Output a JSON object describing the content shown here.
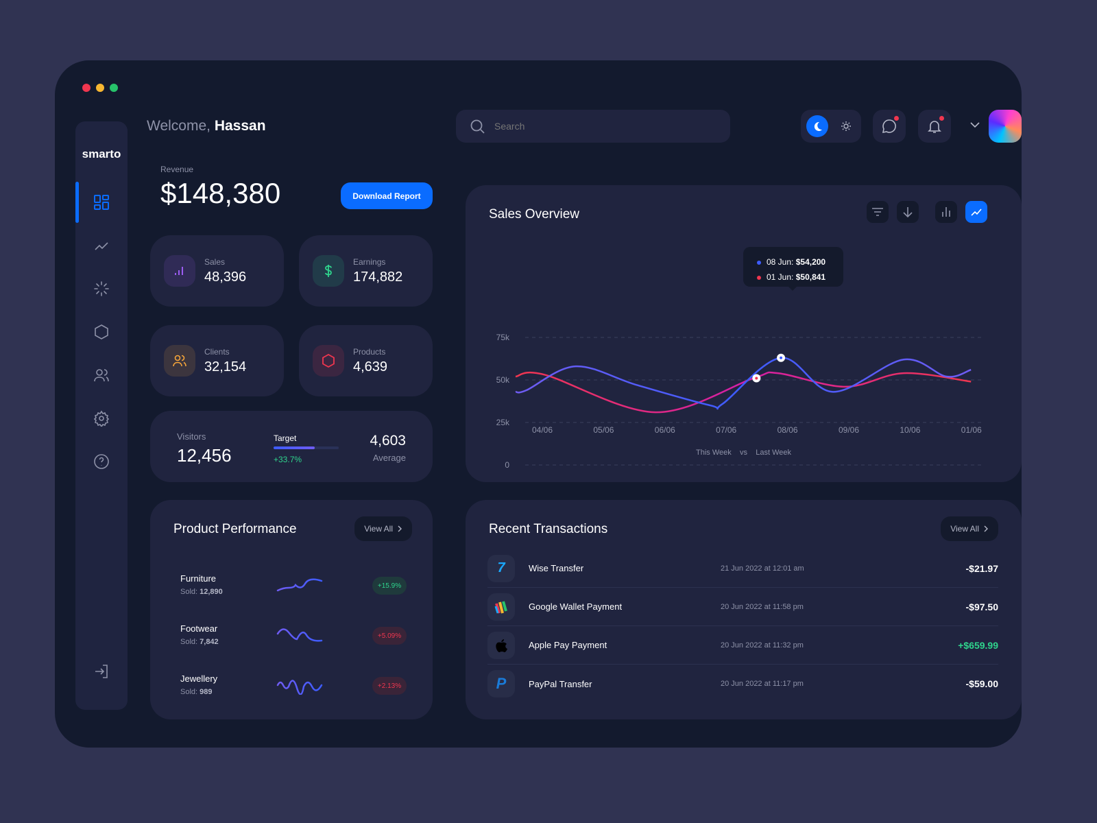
{
  "window_controls": {
    "colors": [
      "#f0364f",
      "#f7b731",
      "#27c26a"
    ]
  },
  "sidebar": {
    "logo": "smarto",
    "items": [
      {
        "name": "dashboard",
        "icon": "grid-icon",
        "active": true
      },
      {
        "name": "analytics",
        "icon": "trend-icon"
      },
      {
        "name": "loading",
        "icon": "spinner-icon"
      },
      {
        "name": "products",
        "icon": "hexagon-icon"
      },
      {
        "name": "users",
        "icon": "users-icon"
      },
      {
        "name": "settings",
        "icon": "gear-icon"
      },
      {
        "name": "help",
        "icon": "help-icon"
      }
    ],
    "logout_icon": "logout-icon"
  },
  "header": {
    "welcome": "Welcome,",
    "user": "Hassan",
    "search_placeholder": "Search",
    "theme": "dark"
  },
  "revenue": {
    "label": "Revenue",
    "value": "$148,380",
    "download_label": "Download Report"
  },
  "stats": [
    {
      "label": "Sales",
      "value": "48,396",
      "icon": "bar-chart-icon",
      "color": "#9b5cf2"
    },
    {
      "label": "Earnings",
      "value": "174,882",
      "icon": "dollar-icon",
      "color": "#2fd58d"
    },
    {
      "label": "Clients",
      "value": "32,154",
      "icon": "users-icon",
      "color": "#f6a53a"
    },
    {
      "label": "Products",
      "value": "4,639",
      "icon": "hexagon-icon",
      "color": "#f0364f"
    }
  ],
  "visitors": {
    "label": "Visitors",
    "value": "12,456",
    "target_label": "Target",
    "target_progress": 0.63,
    "change": "+33.7%",
    "average_value": "4,603",
    "average_label": "Average"
  },
  "sales_overview": {
    "title": "Sales Overview",
    "active_view": "line"
  },
  "chart_data": {
    "type": "line",
    "categories": [
      "04/06",
      "05/06",
      "06/06",
      "07/06",
      "08/06",
      "09/06",
      "10/06",
      "01/06"
    ],
    "yticks": [
      "0",
      "25k",
      "50k",
      "75k"
    ],
    "ylim": [
      0,
      75
    ],
    "grid": true,
    "legend": {
      "a": "This Week",
      "vs": "vs",
      "b": "Last Week"
    },
    "series": [
      {
        "name": "This Week",
        "color": "#3d5cff",
        "points": [
          [
            -0.28,
            43
          ],
          [
            -0.1,
            44
          ],
          [
            0.7,
            58
          ],
          [
            1.7,
            47
          ],
          [
            2.9,
            35
          ],
          [
            3.1,
            36
          ],
          [
            4.05,
            63
          ],
          [
            4.9,
            43
          ],
          [
            6.05,
            62
          ],
          [
            6.75,
            52
          ],
          [
            7.15,
            56
          ]
        ]
      },
      {
        "name": "Last Week",
        "color": "#f0364f",
        "points": [
          [
            -0.28,
            52
          ],
          [
            0.2,
            53
          ],
          [
            2.0,
            31
          ],
          [
            3.6,
            51
          ],
          [
            4.0,
            54
          ],
          [
            5.1,
            46
          ],
          [
            6.05,
            54
          ],
          [
            7.15,
            49
          ]
        ]
      }
    ],
    "tooltip": {
      "line1_label": "08 Jun:",
      "line1_value": "$54,200",
      "line2_label": "01 Jun:",
      "line2_value": "$50,841"
    },
    "markers": [
      [
        4.05,
        63
      ],
      [
        3.65,
        51
      ]
    ]
  },
  "product_performance": {
    "title": "Product Performance",
    "view_all": "View All",
    "items": [
      {
        "name": "Furniture",
        "sold_label": "Sold:",
        "sold": "12,890",
        "change": "+15.9%",
        "trend": "up"
      },
      {
        "name": "Footwear",
        "sold_label": "Sold:",
        "sold": "7,842",
        "change": "+5.09%",
        "trend": "down"
      },
      {
        "name": "Jewellery",
        "sold_label": "Sold:",
        "sold": "989",
        "change": "+2.13%",
        "trend": "down"
      }
    ]
  },
  "transactions": {
    "title": "Recent Transactions",
    "view_all": "View All",
    "items": [
      {
        "name": "Wise Transfer",
        "date": "21 Jun 2022 at 12:01 am",
        "amount": "-$21.97",
        "icon": "wise-icon"
      },
      {
        "name": "Google Wallet Payment",
        "date": "20 Jun 2022 at 11:58 pm",
        "amount": "-$97.50",
        "icon": "google-wallet-icon"
      },
      {
        "name": "Apple Pay Payment",
        "date": "20 Jun 2022 at 11:32 pm",
        "amount": "+$659.99",
        "icon": "apple-icon"
      },
      {
        "name": "PayPal Transfer",
        "date": "20 Jun 2022 at 11:17 pm",
        "amount": "-$59.00",
        "icon": "paypal-icon"
      }
    ]
  }
}
